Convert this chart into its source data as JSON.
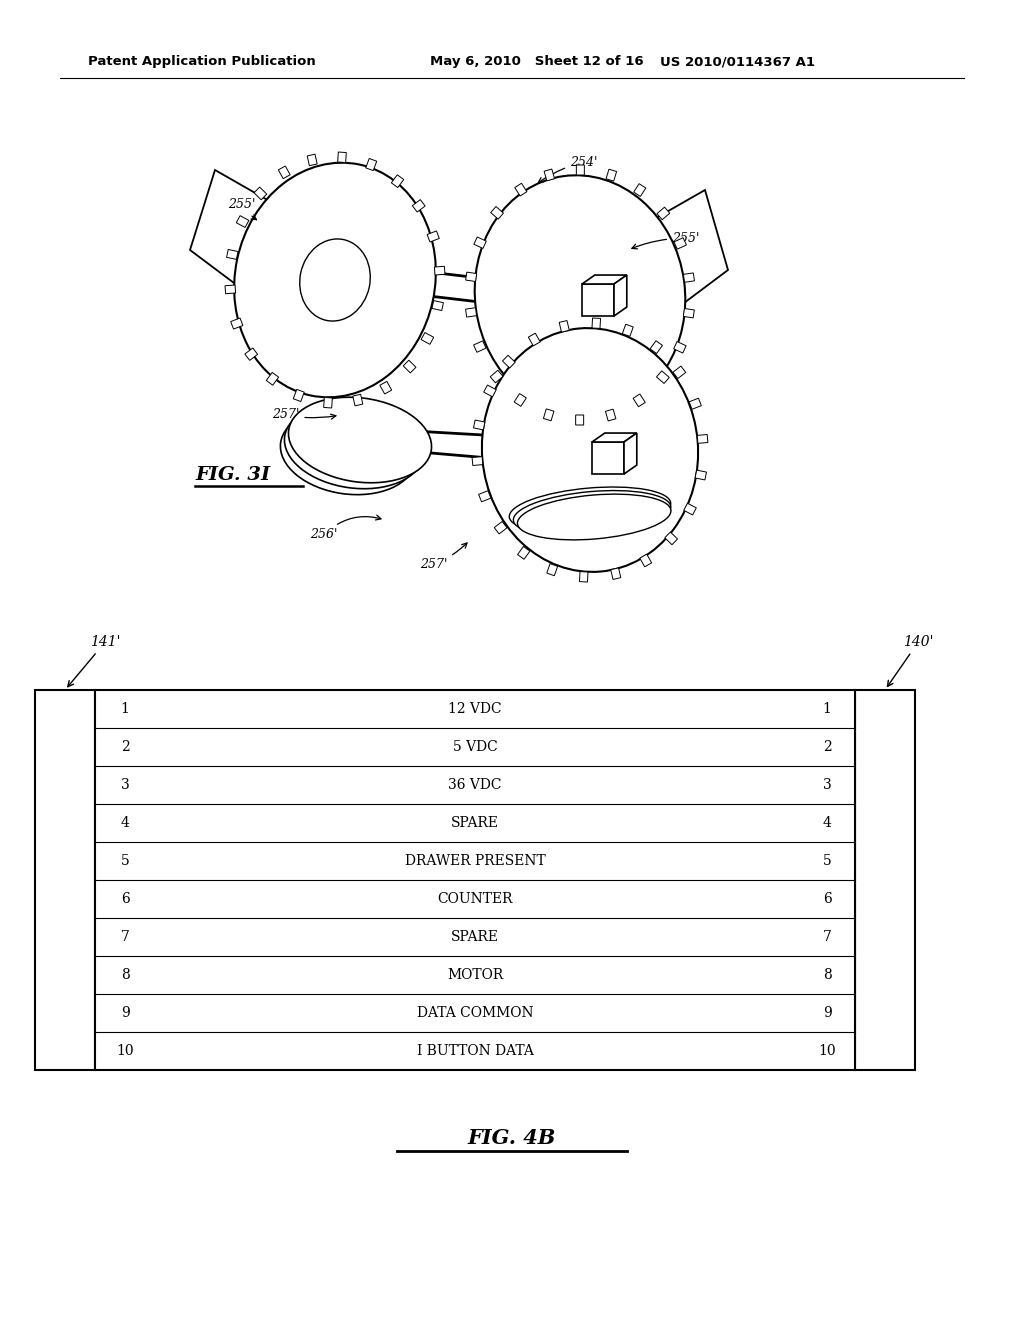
{
  "header_left": "Patent Application Publication",
  "header_mid": "May 6, 2010   Sheet 12 of 16",
  "header_right": "US 2010/0114367 A1",
  "fig3i_label": "FIG. 3I",
  "fig4b_label": "FIG. 4B",
  "table_rows": [
    {
      "num": 1,
      "label": "12 VDC"
    },
    {
      "num": 2,
      "label": "5 VDC"
    },
    {
      "num": 3,
      "label": "36 VDC"
    },
    {
      "num": 4,
      "label": "SPARE"
    },
    {
      "num": 5,
      "label": "DRAWER PRESENT"
    },
    {
      "num": 6,
      "label": "COUNTER"
    },
    {
      "num": 7,
      "label": "SPARE"
    },
    {
      "num": 8,
      "label": "MOTOR"
    },
    {
      "num": 9,
      "label": "DATA COMMON"
    },
    {
      "num": 10,
      "label": "I BUTTON DATA"
    }
  ],
  "left_connector_label": "141'",
  "right_connector_label": "140'",
  "bg_color": "#ffffff",
  "text_color": "#000000"
}
